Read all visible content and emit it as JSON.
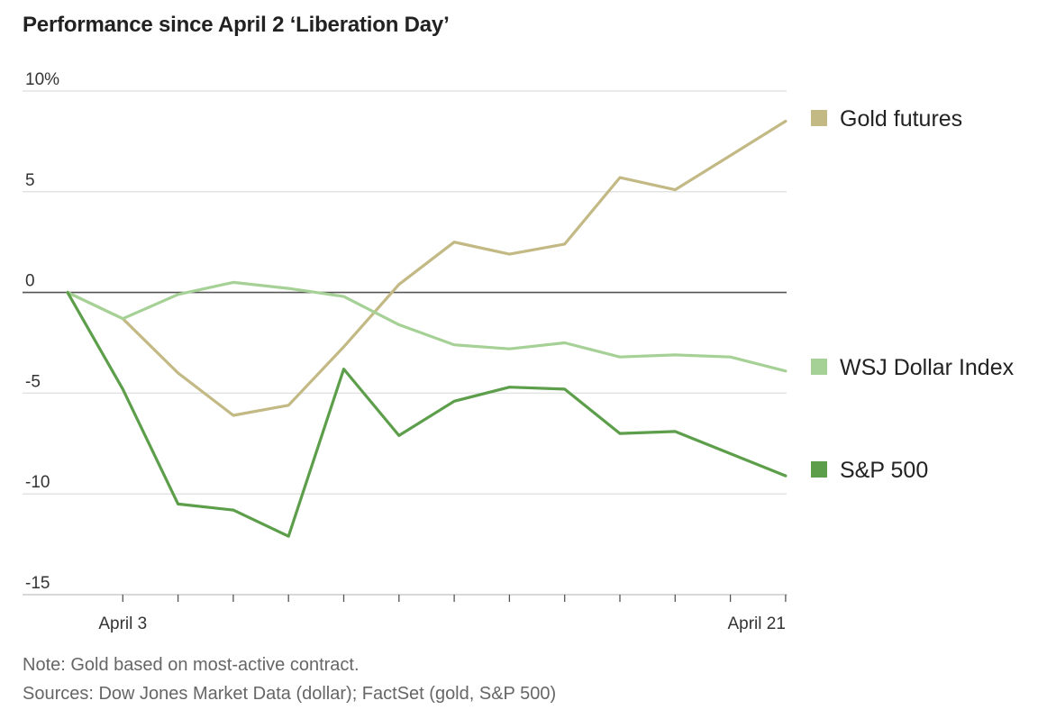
{
  "title": "Performance since April 2 ‘Liberation Day’",
  "note": "Note: Gold based on most-active contract.",
  "sources": "Sources: Dow Jones Market Data (dollar); FactSet (gold, S&P 500)",
  "chart_data": {
    "type": "line",
    "title": "Performance since April 2 ‘Liberation Day’",
    "xlabel": "",
    "ylabel": "",
    "x": [
      "2025-04-02",
      "2025-04-03",
      "2025-04-04",
      "2025-04-07",
      "2025-04-08",
      "2025-04-09",
      "2025-04-10",
      "2025-04-11",
      "2025-04-14",
      "2025-04-15",
      "2025-04-16",
      "2025-04-17",
      "2025-04-18",
      "2025-04-21"
    ],
    "x_tick_labels": [
      {
        "x": "2025-04-03",
        "label": "April 3"
      },
      {
        "x": "2025-04-21",
        "label": "April 21"
      }
    ],
    "ylim": [
      -15,
      10
    ],
    "y_ticks": [
      10,
      5,
      0,
      -5,
      -10,
      -15
    ],
    "y_tick_labels": [
      "10%",
      "5",
      "0",
      "-5",
      "-10",
      "-15"
    ],
    "grid": true,
    "legend": "right",
    "series": [
      {
        "name": "Gold futures",
        "color": "#c2b984",
        "values": [
          0,
          -1.3,
          -4.0,
          -6.1,
          -5.6,
          -2.7,
          0.4,
          2.5,
          1.9,
          2.4,
          5.7,
          5.1,
          6.8,
          8.5
        ]
      },
      {
        "name": "WSJ Dollar Index",
        "color": "#a6d196",
        "values": [
          0,
          -1.3,
          -0.1,
          0.5,
          0.2,
          -0.2,
          -1.6,
          -2.6,
          -2.8,
          -2.5,
          -3.2,
          -3.1,
          -3.2,
          -3.9
        ]
      },
      {
        "name": "S&P 500",
        "color": "#5c9e4a",
        "values": [
          0,
          -4.8,
          -10.5,
          -10.8,
          -12.1,
          -3.8,
          -7.1,
          -5.4,
          -4.7,
          -4.8,
          -7.0,
          -6.9,
          -8.0,
          -9.1
        ]
      }
    ]
  }
}
